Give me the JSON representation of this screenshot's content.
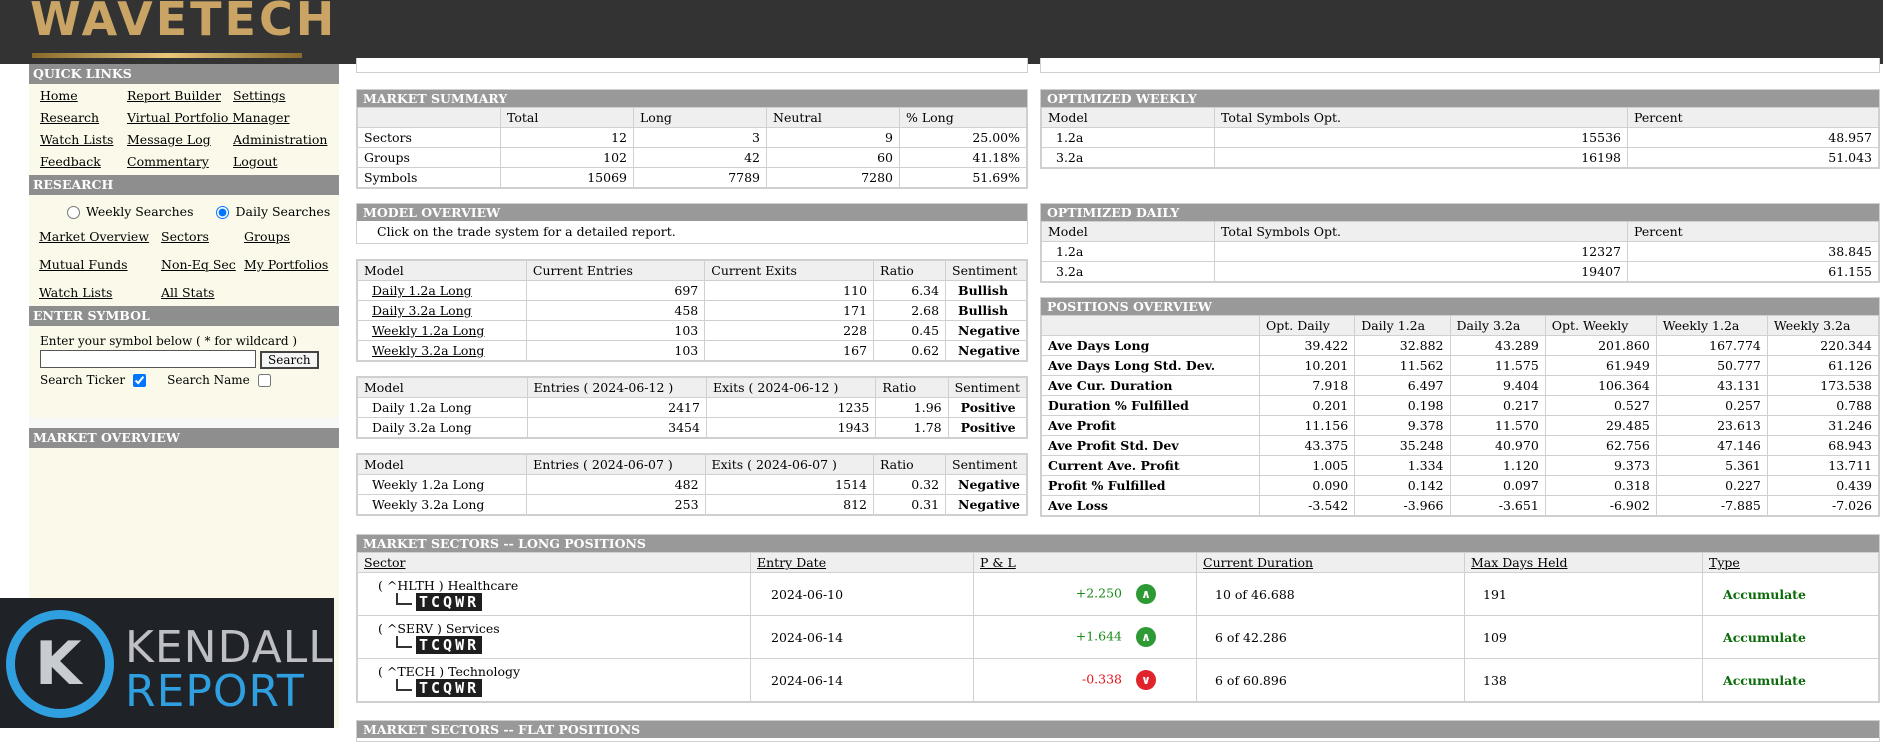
{
  "brand": {
    "logo": "WAVETECH"
  },
  "sidebar": {
    "quick_links_title": "QUICK LINKS",
    "quick_links": [
      "Home",
      "Report Builder",
      "Settings",
      "Research",
      "Virtual Portfolio Manager",
      "",
      "Watch Lists",
      "Message Log",
      "Administration",
      "Feedback",
      "Commentary",
      "Logout"
    ],
    "research_title": "RESEARCH",
    "radio_weekly": "Weekly Searches",
    "radio_daily": "Daily Searches",
    "research_links": [
      "Market Overview",
      "Sectors",
      "Groups",
      "Mutual Funds",
      "Non-Eq Sec",
      "My Portfolios",
      "Watch Lists",
      "All Stats",
      ""
    ],
    "enter_symbol_title": "ENTER SYMBOL",
    "enter_symbol_hint": "Enter your symbol below ( * for wildcard )",
    "search_button": "Search",
    "search_ticker": "Search Ticker",
    "search_name": "Search Name",
    "market_overview_title": "MARKET OVERVIEW"
  },
  "kendall": {
    "line1": "KENDALL",
    "line2": "REPORT"
  },
  "market_summary": {
    "title": "MARKET SUMMARY",
    "headers": [
      "",
      "Total",
      "Long",
      "Neutral",
      "% Long"
    ],
    "rows": [
      [
        "Sectors",
        "12",
        "3",
        "9",
        "25.00%"
      ],
      [
        "Groups",
        "102",
        "42",
        "60",
        "41.18%"
      ],
      [
        "Symbols",
        "15069",
        "7789",
        "7280",
        "51.69%"
      ]
    ]
  },
  "optimized_weekly": {
    "title": "OPTIMIZED WEEKLY",
    "headers": [
      "Model",
      "Total Symbols Opt.",
      "Percent"
    ],
    "rows": [
      [
        "1.2a",
        "15536",
        "48.957"
      ],
      [
        "3.2a",
        "16198",
        "51.043"
      ]
    ]
  },
  "optimized_daily": {
    "title": "OPTIMIZED DAILY",
    "headers": [
      "Model",
      "Total Symbols Opt.",
      "Percent"
    ],
    "rows": [
      [
        "1.2a",
        "12327",
        "38.845"
      ],
      [
        "3.2a",
        "19407",
        "61.155"
      ]
    ]
  },
  "model_overview": {
    "title": "MODEL OVERVIEW",
    "note": "Click on the trade system for a detailed report.",
    "t1_headers": [
      "Model",
      "Current Entries",
      "Current Exits",
      "Ratio",
      "Sentiment"
    ],
    "t1_rows": [
      [
        "Daily 1.2a Long",
        "697",
        "110",
        "6.34",
        "Bullish"
      ],
      [
        "Daily 3.2a Long",
        "458",
        "171",
        "2.68",
        "Bullish"
      ],
      [
        "Weekly 1.2a Long",
        "103",
        "228",
        "0.45",
        "Negative"
      ],
      [
        "Weekly 3.2a Long",
        "103",
        "167",
        "0.62",
        "Negative"
      ]
    ],
    "t2_headers": [
      "Model",
      "Entries ( 2024-06-12 )",
      "Exits ( 2024-06-12 )",
      "Ratio",
      "Sentiment"
    ],
    "t2_rows": [
      [
        "Daily 1.2a Long",
        "2417",
        "1235",
        "1.96",
        "Positive"
      ],
      [
        "Daily 3.2a Long",
        "3454",
        "1943",
        "1.78",
        "Positive"
      ]
    ],
    "t3_headers": [
      "Model",
      "Entries ( 2024-06-07 )",
      "Exits ( 2024-06-07 )",
      "Ratio",
      "Sentiment"
    ],
    "t3_rows": [
      [
        "Weekly 1.2a Long",
        "482",
        "1514",
        "0.32",
        "Negative"
      ],
      [
        "Weekly 3.2a Long",
        "253",
        "812",
        "0.31",
        "Negative"
      ]
    ]
  },
  "positions_overview": {
    "title": "POSITIONS OVERVIEW",
    "headers": [
      "",
      "Opt. Daily",
      "Daily 1.2a",
      "Daily 3.2a",
      "Opt. Weekly",
      "Weekly 1.2a",
      "Weekly 3.2a"
    ],
    "rows": [
      [
        "Ave Days Long",
        "39.422",
        "32.882",
        "43.289",
        "201.860",
        "167.774",
        "220.344"
      ],
      [
        "Ave Days Long Std. Dev.",
        "10.201",
        "11.562",
        "11.575",
        "61.949",
        "50.777",
        "61.126"
      ],
      [
        "Ave Cur. Duration",
        "7.918",
        "6.497",
        "9.404",
        "106.364",
        "43.131",
        "173.538"
      ],
      [
        "Duration % Fulfilled",
        "0.201",
        "0.198",
        "0.217",
        "0.527",
        "0.257",
        "0.788"
      ],
      [
        "Ave Profit",
        "11.156",
        "9.378",
        "11.570",
        "29.485",
        "23.613",
        "31.246"
      ],
      [
        "Ave Profit Std. Dev",
        "43.375",
        "35.248",
        "40.970",
        "62.756",
        "47.146",
        "68.943"
      ],
      [
        "Current Ave. Profit",
        "1.005",
        "1.334",
        "1.120",
        "9.373",
        "5.361",
        "13.711"
      ],
      [
        "Profit % Fulfilled",
        "0.090",
        "0.142",
        "0.097",
        "0.318",
        "0.227",
        "0.439"
      ],
      [
        "Ave Loss",
        "-3.542",
        "-3.966",
        "-3.651",
        "-6.902",
        "-7.885",
        "-7.026"
      ]
    ]
  },
  "market_sectors": {
    "title": "MARKET SECTORS -- LONG POSITIONS",
    "headers": [
      "Sector",
      "Entry Date",
      "P & L",
      "Current Duration",
      "Max Days Held",
      "Type"
    ],
    "tag": "TCQWR",
    "rows": [
      {
        "sector": "( ^HLTH ) Healthcare",
        "date": "2024-06-10",
        "pl": "+2.250",
        "dir": "up",
        "duration": "10 of 46.688",
        "max": "191",
        "type": "Accumulate"
      },
      {
        "sector": "( ^SERV ) Services",
        "date": "2024-06-14",
        "pl": "+1.644",
        "dir": "up",
        "duration": "6 of 42.286",
        "max": "109",
        "type": "Accumulate"
      },
      {
        "sector": "( ^TECH ) Technology",
        "date": "2024-06-14",
        "pl": "-0.338",
        "dir": "down",
        "duration": "6 of 60.896",
        "max": "138",
        "type": "Accumulate"
      }
    ]
  },
  "next_section_title": "MARKET SECTORS -- FLAT POSITIONS",
  "colors": {
    "topbar": "#333333",
    "header": "#999999",
    "sidebar_bg": "#fbfaea",
    "positive": "#1a8a1a",
    "negative": "#e0141b"
  }
}
